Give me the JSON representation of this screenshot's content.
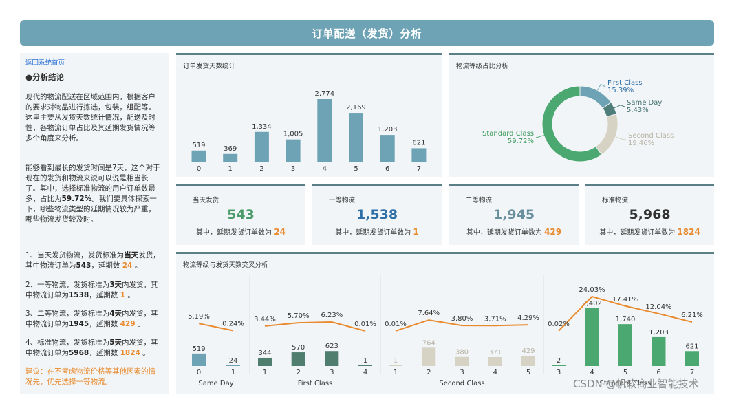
{
  "header": {
    "title": "订单配送（发货）分析"
  },
  "sidebar": {
    "back_link": "返回系统首页",
    "heading": "●分析结论",
    "p1": "现代的物流配送在区域范围内，根据客户的要求对物品进行拣选，包装，组配等。这里主要从发货天数统计情况，配送及时性，各物流订单占比及其延期发货情况等多个角度来分析。",
    "p2_a": "能够看到最长的发货时间是7天，这个对于现在的发货和物流来说可以说是相当长了。其中，选择标准物流的用户订单数最多，占比为",
    "p2_pct": "59.72%",
    "p2_b": "。我们要具体探索一下，哪些物流类型的延期情况较为严重，哪些物流发货较及时。",
    "items": [
      {
        "pre": "1、当天发货物流，发货标准为",
        "std": "当天",
        "mid": "发货，其中物流订单为",
        "orders": "543",
        "sep": "，延期数 ",
        "delay": "24",
        "end": " 。"
      },
      {
        "pre": "2、一等物流，发货标准为",
        "std": "3天",
        "mid": "内发货，其中物流订单为",
        "orders": "1538",
        "sep": "，延期数 ",
        "delay": "1",
        "end": " 。"
      },
      {
        "pre": "3、二等物流，发货标准为",
        "std": "4天",
        "mid": "内发货，其中物流订单为",
        "orders": "1945",
        "sep": "，延期数 ",
        "delay": "429",
        "end": " 。"
      },
      {
        "pre": "4、标准物流，发货标准为",
        "std": "5天",
        "mid": "内发货，其中物流订单为",
        "orders": "5968",
        "sep": "，延期数 ",
        "delay": "1824",
        "end": " 。"
      }
    ],
    "advice": "建议：在不考虑物流价格等其他因素的情况先，优先选择一等物流。"
  },
  "kpis": [
    {
      "label": "当天发货",
      "value": "543",
      "note": "其中，延期发货订单数为 ",
      "delay": "24",
      "color": "#4a9a6a"
    },
    {
      "label": "一等物流",
      "value": "1,538",
      "note": "其中，延期发货订单数为 ",
      "delay": "1",
      "color": "#2f6fa8"
    },
    {
      "label": "二等物流",
      "value": "1,945",
      "note": "其中，延期发货订单数为 ",
      "delay": "429",
      "color": "#6a8f9e"
    },
    {
      "label": "标准物流",
      "value": "5,968",
      "note": "其中，延期发货订单数为 ",
      "delay": "1824",
      "color": "#333333"
    }
  ],
  "watermark": "CSDN @帆软商业智能技术",
  "chart_data": [
    {
      "type": "bar",
      "title": "订单发货天数统计",
      "categories": [
        "0",
        "1",
        "2",
        "3",
        "4",
        "5",
        "6",
        "7"
      ],
      "values": [
        519,
        369,
        1334,
        1005,
        2774,
        2169,
        1203,
        621
      ],
      "labels": [
        "519",
        "369",
        "1,334",
        "1,005",
        "2,774",
        "2,169",
        "1,203",
        "621"
      ],
      "ylim": [
        0,
        2774
      ],
      "color": "#6ea3b5"
    },
    {
      "type": "pie",
      "title": "物流等级占比分析",
      "slices": [
        {
          "name": "First Class",
          "pct": 15.39,
          "label": "15.39%",
          "color": "#6ea3b5"
        },
        {
          "name": "Same Day",
          "pct": 5.43,
          "label": "5.43%",
          "color": "#4f7d7a"
        },
        {
          "name": "Second Class",
          "pct": 19.46,
          "label": "19.46%",
          "color": "#d6d2c4"
        },
        {
          "name": "Standard Class",
          "pct": 59.72,
          "label": "59.72%",
          "color": "#4aa870"
        }
      ]
    },
    {
      "type": "bar",
      "title": "物流等级与发货天数交叉分析",
      "groups": [
        {
          "name": "Same Day",
          "color": "#6ea3b5",
          "categories": [
            "0",
            "1"
          ],
          "values": [
            519,
            24
          ],
          "labels": [
            "519",
            "24"
          ],
          "pcts": [
            5.19,
            0.24
          ],
          "pct_labels": [
            "5.19%",
            "0.24%"
          ]
        },
        {
          "name": "First Class",
          "color": "#4f7d6e",
          "categories": [
            "1",
            "2",
            "3",
            "4"
          ],
          "values": [
            344,
            570,
            623,
            1
          ],
          "labels": [
            "344",
            "570",
            "623",
            "1"
          ],
          "pcts": [
            3.44,
            5.7,
            6.23,
            0.01
          ],
          "pct_labels": [
            "3.44%",
            "5.70%",
            "6.23%",
            "0.01%"
          ]
        },
        {
          "name": "Second Class",
          "color": "#d6d2c4",
          "categories": [
            "1",
            "2",
            "3",
            "4",
            "5"
          ],
          "values": [
            1,
            764,
            380,
            371,
            429
          ],
          "labels": [
            "1",
            "764",
            "380",
            "371",
            "429"
          ],
          "pcts": [
            0.01,
            7.64,
            3.8,
            3.71,
            4.29
          ],
          "pct_labels": [
            "0.01%",
            "7.64%",
            "3.80%",
            "3.71%",
            "4.29%"
          ]
        },
        {
          "name": "Standard Class",
          "color": "#4aa870",
          "categories": [
            "3",
            "4",
            "5",
            "6",
            "7"
          ],
          "values": [
            2,
            2402,
            1740,
            1203,
            621
          ],
          "labels": [
            "2",
            "2,402",
            "1,740",
            "1,203",
            "621"
          ],
          "pcts": [
            0.02,
            24.03,
            17.41,
            12.04,
            6.21
          ],
          "pct_labels": [
            "0.02%",
            "24.03%",
            "17.41%",
            "12.04%",
            "6.21%"
          ]
        }
      ],
      "line_color": "#e88a2d"
    }
  ]
}
